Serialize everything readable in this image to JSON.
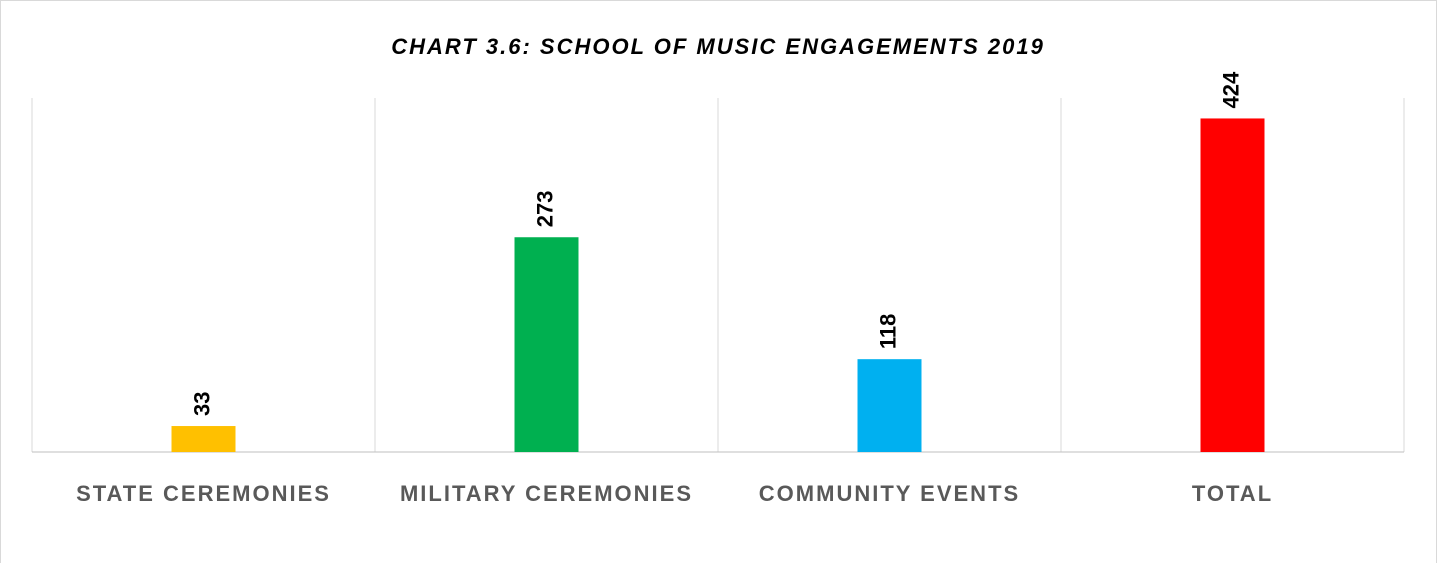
{
  "chart_data": {
    "type": "bar",
    "title": "CHART 3.6:  SCHOOL OF MUSIC ENGAGEMENTS 2019",
    "categories": [
      "STATE CEREMONIES",
      "MILITARY CEREMONIES",
      "COMMUNITY EVENTS",
      "TOTAL"
    ],
    "values": [
      33,
      273,
      118,
      424
    ],
    "colors": [
      "#ffc000",
      "#00b050",
      "#00b0f0",
      "#ff0000"
    ],
    "ylim": [
      0,
      450
    ]
  }
}
